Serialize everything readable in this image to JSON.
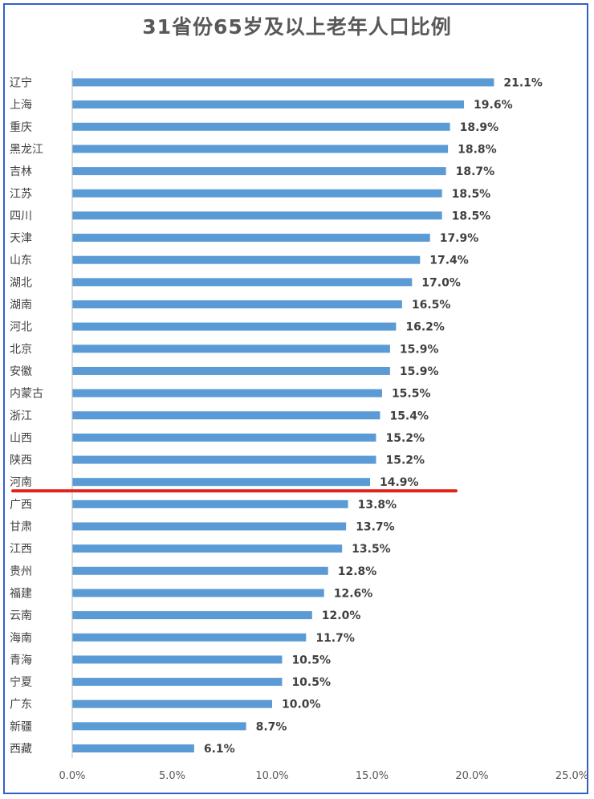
{
  "title": "31省份65岁及以上老年人口比例",
  "colors": {
    "bar": "#5b9bd5",
    "redline": "#e3221c",
    "axis": "#bfbfbf",
    "frame": "#2f62c6"
  },
  "chart_data": {
    "type": "bar",
    "orientation": "horizontal",
    "title": "31省份65岁及以上老年人口比例",
    "categories": [
      "辽宁",
      "上海",
      "重庆",
      "黑龙江",
      "吉林",
      "江苏",
      "四川",
      "天津",
      "山东",
      "湖北",
      "湖南",
      "河北",
      "北京",
      "安徽",
      "内蒙古",
      "浙江",
      "山西",
      "陕西",
      "河南",
      "广西",
      "甘肃",
      "江西",
      "贵州",
      "福建",
      "云南",
      "海南",
      "青海",
      "宁夏",
      "广东",
      "新疆",
      "西藏"
    ],
    "values": [
      21.1,
      19.6,
      18.9,
      18.8,
      18.7,
      18.5,
      18.5,
      17.9,
      17.4,
      17.0,
      16.5,
      16.2,
      15.9,
      15.9,
      15.5,
      15.4,
      15.2,
      15.2,
      14.9,
      13.8,
      13.7,
      13.5,
      12.8,
      12.6,
      12.0,
      11.7,
      10.5,
      10.5,
      10.0,
      8.7,
      6.1
    ],
    "value_labels": [
      "21.1%",
      "19.6%",
      "18.9%",
      "18.8%",
      "18.7%",
      "18.5%",
      "18.5%",
      "17.9%",
      "17.4%",
      "17.0%",
      "16.5%",
      "16.2%",
      "15.9%",
      "15.9%",
      "15.5%",
      "15.4%",
      "15.2%",
      "15.2%",
      "14.9%",
      "13.8%",
      "13.7%",
      "13.5%",
      "12.8%",
      "12.6%",
      "12.0%",
      "11.7%",
      "10.5%",
      "10.5%",
      "10.0%",
      "8.7%",
      "6.1%"
    ],
    "x_ticks": [
      "0.0%",
      "5.0%",
      "10.0%",
      "15.0%",
      "20.0%",
      "25.0%"
    ],
    "x_tick_values": [
      0,
      5,
      10,
      15,
      20,
      25
    ],
    "xlim": [
      0,
      25
    ],
    "grid": false,
    "highlight_after": "河南"
  }
}
